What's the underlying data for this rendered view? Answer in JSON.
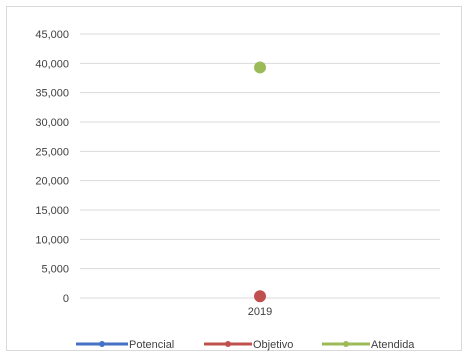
{
  "chart_data": {
    "type": "line",
    "title": "",
    "xlabel": "",
    "ylabel": "",
    "categories": [
      "2019"
    ],
    "ylim": [
      0,
      45000
    ],
    "yticks": [
      0,
      5000,
      10000,
      15000,
      20000,
      25000,
      30000,
      35000,
      40000,
      45000
    ],
    "ytick_labels": [
      "0",
      "5,000",
      "10,000",
      "15,000",
      "20,000",
      "25,000",
      "30,000",
      "35,000",
      "40,000",
      "45,000"
    ],
    "grid": true,
    "legend_position": "bottom",
    "series": [
      {
        "name": "Potencial",
        "color": "#4472c4",
        "values": [
          null
        ]
      },
      {
        "name": "Objetivo",
        "color": "#c0504d",
        "values": [
          300
        ]
      },
      {
        "name": "Atendida",
        "color": "#9bbb59",
        "values": [
          39300
        ]
      }
    ]
  }
}
